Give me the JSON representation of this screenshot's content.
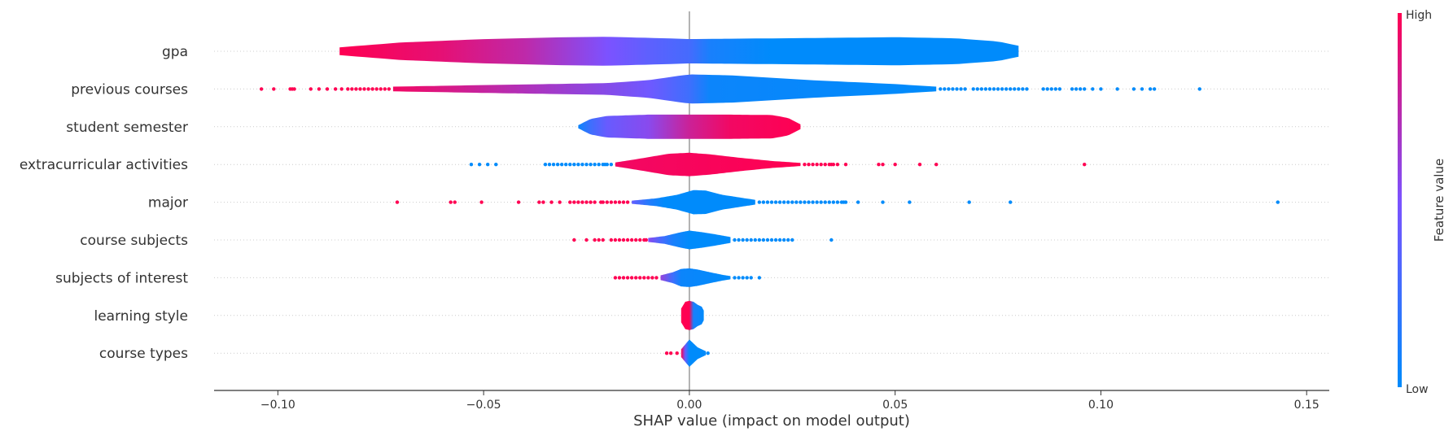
{
  "chart_data": {
    "type": "violin",
    "subtype": "shap-summary",
    "title": "",
    "xlabel": "SHAP value (impact on model output)",
    "ylabel": "",
    "xlim": [
      -0.1155,
      0.1555
    ],
    "xticks": [
      -0.1,
      -0.05,
      0.0,
      0.05,
      0.1,
      0.15
    ],
    "xtick_labels": [
      "−0.10",
      "−0.05",
      "0.00",
      "0.05",
      "0.10",
      "0.15"
    ],
    "zero_line": 0.0,
    "grid": "dotted horizontal row guides",
    "colorbar": {
      "label": "Feature value",
      "high_label": "High",
      "low_label": "Low",
      "low_color": "#008bfb",
      "high_color": "#ff0052"
    },
    "colors": {
      "low": "#008bfb",
      "mid": "#7c52ff",
      "high": "#ff0052",
      "axis": "#333333",
      "zero_line": "#999999"
    },
    "features": [
      {
        "name": "gpa",
        "violin_profile": [
          [
            -0.085,
            0.2
          ],
          [
            -0.07,
            0.45
          ],
          [
            -0.05,
            0.62
          ],
          [
            -0.03,
            0.72
          ],
          [
            -0.02,
            0.74
          ],
          [
            -0.005,
            0.66
          ],
          [
            0.0,
            0.62
          ],
          [
            0.02,
            0.66
          ],
          [
            0.05,
            0.72
          ],
          [
            0.065,
            0.66
          ],
          [
            0.075,
            0.5
          ],
          [
            0.08,
            0.28
          ]
        ],
        "color_profile": [
          [
            -0.085,
            0.0
          ],
          [
            -0.06,
            0.1
          ],
          [
            -0.04,
            0.25
          ],
          [
            -0.02,
            0.5
          ],
          [
            -0.01,
            0.62
          ],
          [
            0.0,
            0.72
          ],
          [
            0.005,
            0.9
          ],
          [
            0.02,
            1.0
          ],
          [
            0.08,
            1.0
          ]
        ],
        "outliers_low_value": [],
        "outliers_high_value": []
      },
      {
        "name": "previous courses",
        "violin_profile": [
          [
            -0.072,
            0.12
          ],
          [
            -0.05,
            0.2
          ],
          [
            -0.02,
            0.3
          ],
          [
            -0.01,
            0.45
          ],
          [
            0.0,
            0.75
          ],
          [
            0.01,
            0.7
          ],
          [
            0.03,
            0.45
          ],
          [
            0.05,
            0.25
          ],
          [
            0.06,
            0.12
          ]
        ],
        "color_profile": [
          [
            -0.072,
            0.05
          ],
          [
            -0.04,
            0.3
          ],
          [
            -0.01,
            0.55
          ],
          [
            0.0,
            0.75
          ],
          [
            0.005,
            0.95
          ],
          [
            0.06,
            1.0
          ]
        ],
        "outliers_high_value": [
          -0.104,
          -0.101,
          -0.097,
          -0.0965,
          -0.096,
          -0.092,
          -0.09,
          -0.088,
          -0.086,
          -0.0845,
          -0.083,
          -0.082,
          -0.081,
          -0.08,
          -0.079,
          -0.078,
          -0.077,
          -0.076,
          -0.075,
          -0.074,
          -0.073
        ],
        "outliers_low_value": [
          0.061,
          0.062,
          0.063,
          0.064,
          0.065,
          0.066,
          0.067,
          0.069,
          0.07,
          0.071,
          0.072,
          0.073,
          0.074,
          0.075,
          0.076,
          0.077,
          0.078,
          0.079,
          0.08,
          0.081,
          0.082,
          0.086,
          0.087,
          0.088,
          0.089,
          0.09,
          0.093,
          0.094,
          0.095,
          0.096,
          0.098,
          0.1,
          0.104,
          0.108,
          0.11,
          0.112,
          0.113,
          0.124
        ]
      },
      {
        "name": "student semester",
        "violin_profile": [
          [
            -0.027,
            0.08
          ],
          [
            -0.024,
            0.4
          ],
          [
            -0.02,
            0.55
          ],
          [
            -0.01,
            0.62
          ],
          [
            0.0,
            0.62
          ],
          [
            0.01,
            0.62
          ],
          [
            0.02,
            0.6
          ],
          [
            0.024,
            0.45
          ],
          [
            0.027,
            0.12
          ]
        ],
        "color_profile": [
          [
            -0.027,
            0.95
          ],
          [
            -0.024,
            0.75
          ],
          [
            -0.02,
            0.58
          ],
          [
            -0.01,
            0.45
          ],
          [
            0.0,
            0.2
          ],
          [
            0.01,
            0.05
          ],
          [
            0.027,
            0.0
          ]
        ],
        "outliers_low_value": [],
        "outliers_high_value": []
      },
      {
        "name": "extracurricular activities",
        "violin_profile": [
          [
            -0.018,
            0.1
          ],
          [
            -0.012,
            0.3
          ],
          [
            -0.005,
            0.55
          ],
          [
            0.0,
            0.6
          ],
          [
            0.005,
            0.52
          ],
          [
            0.012,
            0.35
          ],
          [
            0.02,
            0.18
          ],
          [
            0.027,
            0.08
          ]
        ],
        "color_profile": [
          [
            -0.018,
            0.05
          ],
          [
            0.027,
            0.0
          ]
        ],
        "outliers_low_value": [
          -0.053,
          -0.051,
          -0.049,
          -0.047,
          -0.035,
          -0.034,
          -0.033,
          -0.032,
          -0.031,
          -0.03,
          -0.029,
          -0.028,
          -0.027,
          -0.026,
          -0.025,
          -0.024,
          -0.023,
          -0.022,
          -0.021,
          -0.0205,
          -0.02,
          -0.019
        ],
        "outliers_high_value": [
          0.028,
          0.029,
          0.03,
          0.031,
          0.032,
          0.033,
          0.034,
          0.0345,
          0.035,
          0.036,
          0.038,
          0.046,
          0.047,
          0.05,
          0.056,
          0.06,
          0.096
        ]
      },
      {
        "name": "major",
        "violin_profile": [
          [
            -0.014,
            0.08
          ],
          [
            -0.008,
            0.2
          ],
          [
            -0.003,
            0.38
          ],
          [
            0.001,
            0.62
          ],
          [
            0.004,
            0.6
          ],
          [
            0.008,
            0.38
          ],
          [
            0.012,
            0.25
          ],
          [
            0.016,
            0.12
          ]
        ],
        "color_profile": [
          [
            -0.014,
            0.6
          ],
          [
            -0.01,
            0.85
          ],
          [
            -0.006,
            1.0
          ],
          [
            0.016,
            1.0
          ]
        ],
        "outliers_high_value": [
          -0.071,
          -0.058,
          -0.057,
          -0.0505,
          -0.0415,
          -0.0365,
          -0.0355,
          -0.0335,
          -0.0315,
          -0.029,
          -0.028,
          -0.027,
          -0.026,
          -0.025,
          -0.024,
          -0.023,
          -0.0215,
          -0.021,
          -0.02,
          -0.019,
          -0.018,
          -0.017,
          -0.016,
          -0.015
        ],
        "outliers_low_value": [
          0.017,
          0.018,
          0.019,
          0.02,
          0.021,
          0.022,
          0.023,
          0.024,
          0.025,
          0.026,
          0.027,
          0.028,
          0.029,
          0.03,
          0.031,
          0.032,
          0.033,
          0.034,
          0.035,
          0.036,
          0.037,
          0.0375,
          0.038,
          0.041,
          0.047,
          0.0535,
          0.068,
          0.078,
          0.143
        ]
      },
      {
        "name": "course subjects",
        "violin_profile": [
          [
            -0.01,
            0.1
          ],
          [
            -0.006,
            0.2
          ],
          [
            -0.002,
            0.4
          ],
          [
            0.0,
            0.48
          ],
          [
            0.003,
            0.4
          ],
          [
            0.006,
            0.3
          ],
          [
            0.01,
            0.15
          ]
        ],
        "color_profile": [
          [
            -0.01,
            0.45
          ],
          [
            -0.007,
            0.7
          ],
          [
            -0.004,
            0.9
          ],
          [
            0.0,
            1.0
          ],
          [
            0.01,
            1.0
          ]
        ],
        "outliers_high_value": [
          -0.028,
          -0.025,
          -0.023,
          -0.022,
          -0.021,
          -0.019,
          -0.018,
          -0.017,
          -0.016,
          -0.015,
          -0.014,
          -0.013,
          -0.012,
          -0.011,
          -0.0105
        ],
        "outliers_low_value": [
          0.011,
          0.012,
          0.013,
          0.014,
          0.015,
          0.016,
          0.017,
          0.018,
          0.019,
          0.02,
          0.021,
          0.022,
          0.023,
          0.024,
          0.025,
          0.0345
        ]
      },
      {
        "name": "subjects of interest",
        "violin_profile": [
          [
            -0.007,
            0.12
          ],
          [
            -0.004,
            0.28
          ],
          [
            -0.002,
            0.45
          ],
          [
            0.0,
            0.48
          ],
          [
            0.002,
            0.42
          ],
          [
            0.005,
            0.28
          ],
          [
            0.008,
            0.15
          ],
          [
            0.01,
            0.08
          ]
        ],
        "color_profile": [
          [
            -0.007,
            0.4
          ],
          [
            -0.004,
            0.75
          ],
          [
            -0.002,
            0.95
          ],
          [
            0.01,
            1.0
          ]
        ],
        "outliers_high_value": [
          -0.018,
          -0.017,
          -0.016,
          -0.015,
          -0.014,
          -0.013,
          -0.012,
          -0.011,
          -0.01,
          -0.009,
          -0.008
        ],
        "outliers_low_value": [
          0.011,
          0.012,
          0.013,
          0.014,
          0.015,
          0.017
        ]
      },
      {
        "name": "learning style",
        "violin_profile": [
          [
            -0.002,
            0.35
          ],
          [
            -0.001,
            0.7
          ],
          [
            0.0,
            0.75
          ],
          [
            0.001,
            0.7
          ],
          [
            0.002,
            0.55
          ],
          [
            0.003,
            0.45
          ],
          [
            0.0035,
            0.25
          ]
        ],
        "color_profile": [
          [
            -0.002,
            0.0
          ],
          [
            0.0,
            0.0
          ],
          [
            0.001,
            0.9
          ],
          [
            0.0035,
            1.0
          ]
        ],
        "outliers_low_value": [],
        "outliers_high_value": []
      },
      {
        "name": "course types",
        "violin_profile": [
          [
            -0.002,
            0.2
          ],
          [
            -0.001,
            0.45
          ],
          [
            0.0,
            0.7
          ],
          [
            0.001,
            0.5
          ],
          [
            0.002,
            0.3
          ],
          [
            0.004,
            0.1
          ]
        ],
        "color_profile": [
          [
            -0.002,
            0.0
          ],
          [
            -0.001,
            0.6
          ],
          [
            0.0,
            1.0
          ],
          [
            0.004,
            1.0
          ]
        ],
        "outliers_high_value": [
          -0.0055,
          -0.0045,
          -0.003
        ],
        "outliers_low_value": [
          0.0045
        ]
      }
    ]
  }
}
